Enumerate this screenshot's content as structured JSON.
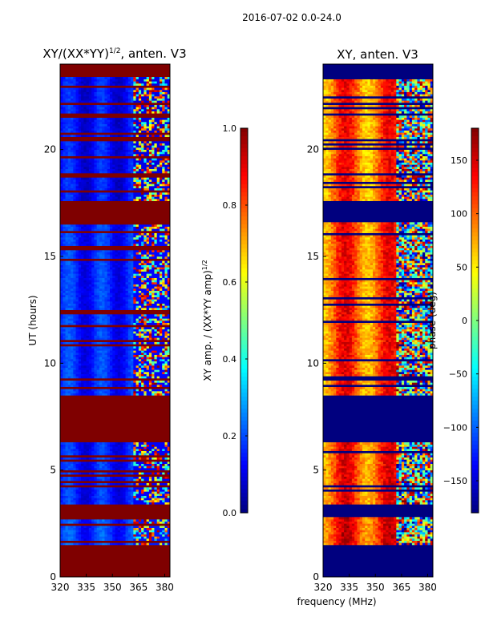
{
  "suptitle": "2016-07-02 0.0-24.0",
  "colors": {
    "jet_stops": [
      "#00007f",
      "#0000ff",
      "#007fff",
      "#00ffff",
      "#7fff7f",
      "#ffff00",
      "#ff7f00",
      "#ff0000",
      "#7f0000"
    ],
    "frame": "#000000"
  },
  "chart_data": [
    {
      "type": "heatmap",
      "title": "XY/(XX*YY)^(1/2), anten. V3",
      "title_main": "XY/(XX*YY)",
      "title_exp": "1/2",
      "title_tail": ", anten. V3",
      "xlabel": "",
      "ylabel": "UT (hours)",
      "xlim": [
        320,
        383
      ],
      "ylim": [
        0,
        24
      ],
      "xticks": [
        320,
        335,
        350,
        365,
        380
      ],
      "yticks": [
        0,
        5,
        10,
        15,
        20
      ],
      "zlim": [
        0.0,
        1.0
      ],
      "colorbar": {
        "label_main": "XY amp. / (XX*YY amp)",
        "label_exp": "1/2",
        "ticks": [
          0.0,
          0.2,
          0.4,
          0.6,
          0.8,
          1.0
        ],
        "tick_labels": [
          "0.0",
          "0.2",
          "0.4",
          "0.6",
          "0.8",
          "1.0"
        ]
      },
      "observed_bands": [
        {
          "ut_start": 1.5,
          "ut_end": 2.8,
          "base": 0.15
        },
        {
          "ut_start": 3.4,
          "ut_end": 6.3,
          "base": 0.12
        },
        {
          "ut_start": 8.5,
          "ut_end": 16.6,
          "base": 0.13
        },
        {
          "ut_start": 17.6,
          "ut_end": 23.4,
          "base": 0.1
        }
      ],
      "flagged_value": 1.0,
      "rfi_band_mhz": [
        362,
        382
      ]
    },
    {
      "type": "heatmap",
      "title": "XY, anten. V3",
      "xlabel": "frequency (MHz)",
      "ylabel": "",
      "xlim": [
        320,
        383
      ],
      "ylim": [
        0,
        24
      ],
      "xticks": [
        320,
        335,
        350,
        365,
        380
      ],
      "yticks": [
        0,
        5,
        10,
        15,
        20
      ],
      "zlim": [
        -180,
        180
      ],
      "colorbar": {
        "label": "phase (deg)",
        "ticks": [
          -150,
          -100,
          -50,
          0,
          50,
          100,
          150
        ],
        "tick_labels": [
          "−150",
          "−100",
          "−50",
          "0",
          "50",
          "100",
          "150"
        ]
      },
      "observed_bands": [
        {
          "ut_start": 1.5,
          "ut_end": 2.8,
          "base": 120
        },
        {
          "ut_start": 3.4,
          "ut_end": 6.3,
          "base": 110
        },
        {
          "ut_start": 8.5,
          "ut_end": 16.6,
          "base": 105
        },
        {
          "ut_start": 17.6,
          "ut_end": 23.4,
          "base": 100
        }
      ],
      "flagged_value": -180,
      "rfi_band_mhz": [
        362,
        382
      ]
    }
  ]
}
